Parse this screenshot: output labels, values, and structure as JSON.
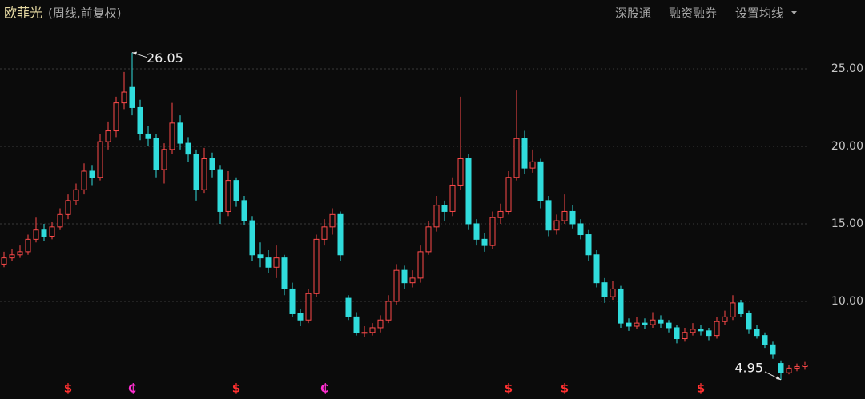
{
  "header": {
    "title": "欧菲光",
    "subtitle": "(周线,前复权)",
    "links": [
      "深股通",
      "融资融券",
      "设置均线"
    ]
  },
  "chart_data": {
    "type": "candlestick",
    "candles": [
      [
        12.4,
        13.2,
        12.2,
        12.8
      ],
      [
        12.8,
        13.4,
        12.6,
        13.0
      ],
      [
        13.0,
        13.6,
        12.8,
        13.2
      ],
      [
        13.2,
        14.3,
        13.0,
        14.0
      ],
      [
        14.0,
        15.4,
        13.8,
        14.6
      ],
      [
        14.6,
        15.0,
        13.9,
        14.2
      ],
      [
        14.2,
        15.1,
        14.0,
        14.8
      ],
      [
        14.8,
        16.0,
        14.6,
        15.6
      ],
      [
        15.6,
        16.9,
        15.3,
        16.5
      ],
      [
        16.5,
        17.6,
        16.2,
        17.2
      ],
      [
        17.2,
        18.9,
        16.9,
        18.4
      ],
      [
        18.4,
        18.8,
        17.5,
        18.0
      ],
      [
        18.0,
        20.8,
        17.8,
        20.3
      ],
      [
        20.3,
        21.6,
        19.8,
        21.0
      ],
      [
        21.0,
        23.2,
        20.6,
        22.8
      ],
      [
        22.8,
        24.8,
        22.4,
        23.5
      ],
      [
        23.8,
        26.05,
        22.0,
        22.5
      ],
      [
        22.5,
        23.0,
        20.4,
        20.8
      ],
      [
        20.8,
        21.3,
        20.0,
        20.5
      ],
      [
        20.5,
        20.8,
        18.0,
        18.5
      ],
      [
        18.5,
        20.2,
        17.6,
        19.8
      ],
      [
        19.8,
        22.8,
        19.5,
        21.5
      ],
      [
        21.5,
        22.0,
        19.8,
        20.2
      ],
      [
        20.2,
        20.6,
        19.0,
        19.5
      ],
      [
        19.5,
        19.8,
        16.5,
        17.2
      ],
      [
        17.2,
        19.9,
        17.0,
        19.2
      ],
      [
        19.2,
        19.6,
        18.0,
        18.5
      ],
      [
        18.5,
        18.8,
        15.0,
        15.8
      ],
      [
        15.8,
        18.4,
        15.5,
        17.8
      ],
      [
        17.8,
        18.0,
        16.1,
        16.5
      ],
      [
        16.5,
        16.8,
        14.9,
        15.2
      ],
      [
        15.2,
        15.5,
        12.6,
        13.0
      ],
      [
        13.0,
        13.8,
        12.2,
        12.8
      ],
      [
        12.8,
        13.3,
        11.8,
        12.2
      ],
      [
        12.2,
        13.6,
        11.5,
        12.8
      ],
      [
        12.8,
        13.0,
        10.4,
        10.8
      ],
      [
        10.8,
        11.2,
        9.0,
        9.2
      ],
      [
        9.2,
        9.5,
        8.4,
        8.8
      ],
      [
        8.8,
        10.8,
        8.6,
        10.5
      ],
      [
        10.5,
        14.3,
        10.3,
        14.0
      ],
      [
        14.0,
        15.3,
        13.6,
        14.8
      ],
      [
        14.8,
        16.0,
        14.3,
        15.6
      ],
      [
        15.6,
        15.8,
        12.6,
        13.0
      ],
      [
        10.2,
        10.4,
        8.8,
        9.0
      ],
      [
        9.0,
        9.3,
        7.8,
        8.0
      ],
      [
        8.0,
        8.4,
        7.7,
        8.0
      ],
      [
        8.0,
        8.6,
        7.8,
        8.3
      ],
      [
        8.3,
        9.1,
        8.0,
        8.8
      ],
      [
        8.8,
        10.4,
        8.6,
        10.0
      ],
      [
        10.0,
        12.4,
        9.8,
        12.0
      ],
      [
        12.0,
        12.3,
        10.8,
        11.2
      ],
      [
        11.2,
        12.0,
        10.9,
        11.5
      ],
      [
        11.5,
        13.6,
        11.2,
        13.2
      ],
      [
        13.2,
        15.2,
        13.0,
        14.8
      ],
      [
        14.8,
        16.8,
        14.5,
        16.2
      ],
      [
        16.2,
        16.5,
        15.2,
        15.8
      ],
      [
        15.8,
        18.0,
        15.5,
        17.5
      ],
      [
        17.5,
        23.2,
        17.2,
        19.2
      ],
      [
        19.2,
        19.5,
        14.6,
        15.0
      ],
      [
        15.0,
        15.3,
        13.6,
        14.0
      ],
      [
        14.0,
        14.4,
        13.2,
        13.6
      ],
      [
        13.6,
        15.8,
        13.4,
        15.4
      ],
      [
        15.4,
        16.3,
        15.0,
        15.8
      ],
      [
        15.8,
        18.4,
        15.6,
        18.0
      ],
      [
        18.0,
        23.6,
        17.8,
        20.5
      ],
      [
        20.5,
        21.0,
        18.2,
        18.6
      ],
      [
        18.6,
        19.8,
        18.3,
        19.0
      ],
      [
        19.0,
        19.2,
        16.0,
        16.5
      ],
      [
        16.5,
        16.8,
        14.2,
        14.6
      ],
      [
        14.6,
        15.6,
        14.3,
        15.2
      ],
      [
        15.2,
        16.9,
        15.0,
        15.8
      ],
      [
        15.8,
        16.2,
        14.7,
        15.0
      ],
      [
        15.0,
        15.3,
        14.0,
        14.3
      ],
      [
        14.3,
        14.6,
        12.6,
        13.0
      ],
      [
        13.0,
        13.3,
        10.9,
        11.2
      ],
      [
        11.2,
        11.5,
        9.9,
        10.3
      ],
      [
        10.3,
        11.3,
        10.1,
        10.8
      ],
      [
        10.8,
        11.0,
        8.3,
        8.6
      ],
      [
        8.6,
        8.9,
        8.1,
        8.4
      ],
      [
        8.4,
        9.0,
        8.2,
        8.6
      ],
      [
        8.6,
        8.9,
        8.2,
        8.5
      ],
      [
        8.5,
        9.3,
        8.3,
        8.8
      ],
      [
        8.8,
        9.1,
        8.3,
        8.6
      ],
      [
        8.6,
        8.8,
        8.0,
        8.3
      ],
      [
        8.3,
        8.5,
        7.3,
        7.6
      ],
      [
        7.6,
        8.3,
        7.4,
        8.0
      ],
      [
        8.0,
        8.6,
        7.8,
        8.2
      ],
      [
        8.2,
        8.5,
        7.8,
        8.1
      ],
      [
        8.1,
        8.3,
        7.5,
        7.8
      ],
      [
        7.8,
        9.0,
        7.6,
        8.7
      ],
      [
        8.7,
        9.4,
        8.5,
        9.0
      ],
      [
        9.0,
        10.4,
        8.8,
        9.9
      ],
      [
        9.9,
        10.1,
        9.0,
        9.2
      ],
      [
        9.2,
        9.4,
        7.9,
        8.2
      ],
      [
        8.2,
        8.5,
        7.6,
        7.8
      ],
      [
        7.8,
        8.0,
        7.0,
        7.2
      ],
      [
        7.2,
        7.4,
        6.3,
        6.6
      ],
      [
        6.0,
        6.2,
        4.95,
        5.4
      ],
      [
        5.4,
        5.9,
        5.3,
        5.7
      ],
      [
        5.7,
        6.0,
        5.5,
        5.8
      ],
      [
        5.8,
        6.1,
        5.6,
        5.9
      ]
    ],
    "up_color": "#ff4a4a",
    "down_color": "#30dcdc",
    "ylim": [
      3.71,
      29.43
    ],
    "yticks": [
      {
        "value": 10,
        "label": "10.00"
      },
      {
        "value": 15,
        "label": "15.00"
      },
      {
        "value": 20,
        "label": "20.00"
      },
      {
        "value": 25,
        "label": "25.00"
      }
    ],
    "grid": true,
    "annotations": [
      {
        "value": 26.05,
        "candle": 16
      },
      {
        "value": 4.95,
        "candle": 97
      }
    ],
    "events": [
      {
        "candle": 8,
        "label": "$",
        "color": "#ff3030"
      },
      {
        "candle": 16,
        "label": "₵",
        "color": "#ff2fd0"
      },
      {
        "candle": 29,
        "label": "$",
        "color": "#ff3030"
      },
      {
        "candle": 40,
        "label": "₵",
        "color": "#ff2fd0"
      },
      {
        "candle": 63,
        "label": "$",
        "color": "#ff3030"
      },
      {
        "candle": 70,
        "label": "$",
        "color": "#ff3030"
      },
      {
        "candle": 87,
        "label": "$",
        "color": "#ff3030"
      }
    ]
  }
}
